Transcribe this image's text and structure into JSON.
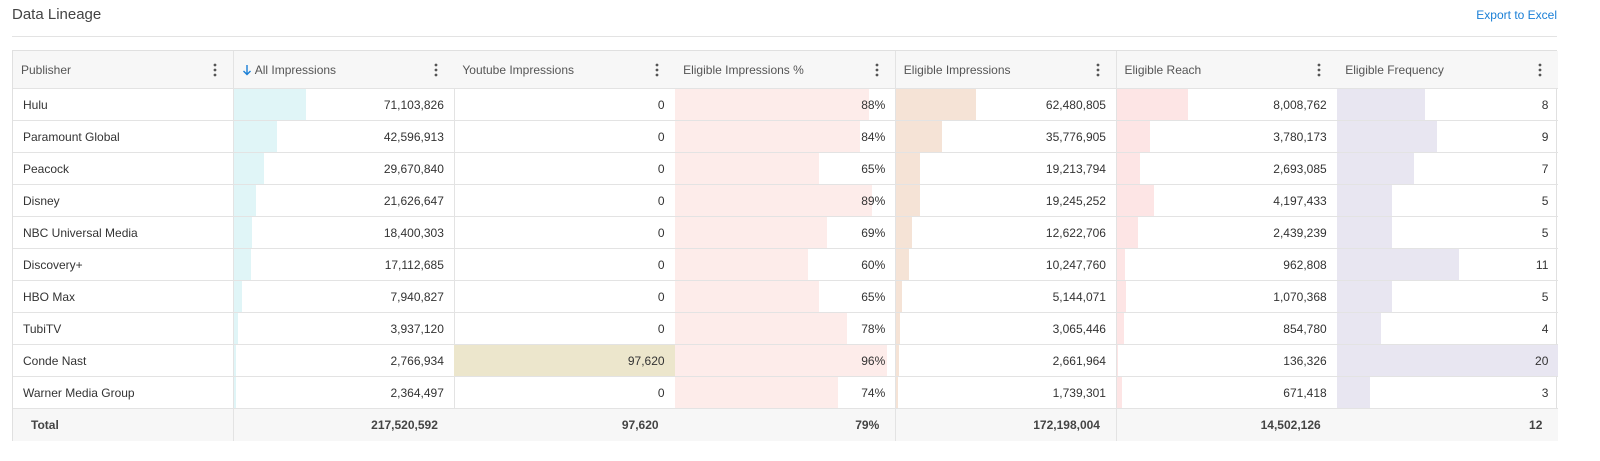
{
  "header": {
    "title": "Data Lineage",
    "action": "Export to Excel"
  },
  "table": {
    "columns": [
      "Publisher",
      "All Impressions",
      "Youtube Impressions",
      "Eligible Impressions %",
      "Eligible Impressions",
      "Eligible Reach",
      "Eligible Frequency"
    ],
    "rows": [
      [
        "Hulu",
        "71,103,826",
        "0",
        "88%",
        "62,480,805",
        "8,008,762",
        "8"
      ],
      [
        "Paramount Global",
        "42,596,913",
        "0",
        "84%",
        "35,776,905",
        "3,780,173",
        "9"
      ],
      [
        "Peacock",
        "29,670,840",
        "0",
        "65%",
        "19,213,794",
        "2,693,085",
        "7"
      ],
      [
        "Disney",
        "21,626,647",
        "0",
        "89%",
        "19,245,252",
        "4,197,433",
        "5"
      ],
      [
        "NBC Universal Media",
        "18,400,303",
        "0",
        "69%",
        "12,622,706",
        "2,439,239",
        "5"
      ],
      [
        "Discovery+",
        "17,112,685",
        "0",
        "60%",
        "10,247,760",
        "962,808",
        "11"
      ],
      [
        "HBO Max",
        "7,940,827",
        "0",
        "65%",
        "5,144,071",
        "1,070,368",
        "5"
      ],
      [
        "TubiTV",
        "3,937,120",
        "0",
        "78%",
        "3,065,446",
        "854,780",
        "4"
      ],
      [
        "Conde Nast",
        "2,766,934",
        "97,620",
        "96%",
        "2,661,964",
        "136,326",
        "20"
      ],
      [
        "Warner Media Group",
        "2,364,497",
        "0",
        "74%",
        "1,739,301",
        "671,418",
        "3"
      ]
    ],
    "total": [
      "Total",
      "217,520,592",
      "97,620",
      "79%",
      "172,198,004",
      "14,502,126",
      "12"
    ]
  }
}
